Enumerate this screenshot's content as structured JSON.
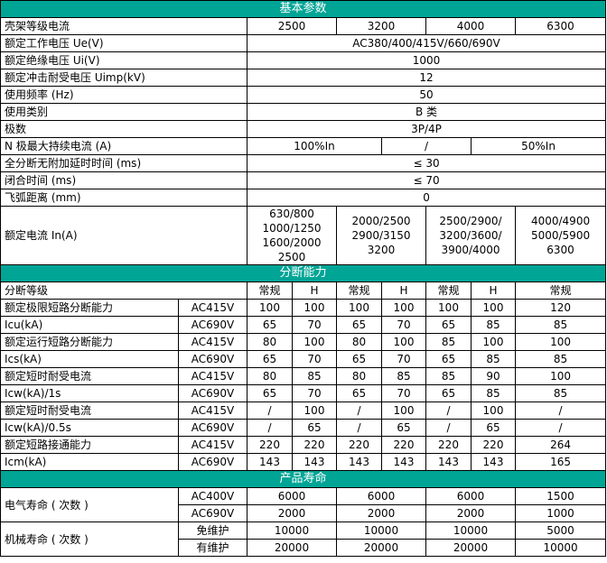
{
  "basic": {
    "title": "基本参数",
    "rows": [
      {
        "label": "壳架等级电流",
        "values": [
          "2500",
          "3200",
          "4000",
          "6300"
        ]
      },
      {
        "label": "额定工作电压 Ue(V)",
        "values": [
          "AC380/400/415V/660/690V"
        ]
      },
      {
        "label": "额定绝缘电压 Ui(V)",
        "values": [
          "1000"
        ]
      },
      {
        "label": "额定冲击耐受电压 Uimp(kV)",
        "values": [
          "12"
        ]
      },
      {
        "label": "使用频率 (Hz)",
        "values": [
          "50"
        ]
      },
      {
        "label": "使用类别",
        "values": [
          "B 类"
        ]
      },
      {
        "label": "极数",
        "values": [
          "3P/4P"
        ]
      },
      {
        "label": "N 极最大持续电流 (A)",
        "values": [
          "100%In",
          "/",
          "50%In"
        ]
      },
      {
        "label": "全分断无附加延时时间 (ms)",
        "values": [
          "≤ 30"
        ]
      },
      {
        "label": "闭合时间 (ms)",
        "values": [
          "≤ 70"
        ]
      },
      {
        "label": "飞弧距离 (mm)",
        "values": [
          "0"
        ]
      },
      {
        "label": "额定电流 In(A)",
        "values": [
          "630/800\n1000/1250\n1600/2000\n2500",
          "2000/2500\n2900/3150\n3200",
          "2500/2900/\n3200/3600/\n3900/4000",
          "4000/4900\n5000/5900\n6300"
        ]
      }
    ]
  },
  "breaking": {
    "title": "分断能力",
    "grade_label": "分断等级",
    "grades": [
      "常规",
      "H",
      "常规",
      "H",
      "常规",
      "H",
      "常规"
    ],
    "groups": [
      {
        "label": "额定极限短路分断能力",
        "sublabel": "Icu(kA)",
        "rows": [
          {
            "voltage": "AC415V",
            "values": [
              "100",
              "100",
              "100",
              "100",
              "100",
              "100",
              "120"
            ]
          },
          {
            "voltage": "AC690V",
            "values": [
              "65",
              "70",
              "65",
              "70",
              "65",
              "85",
              "85"
            ]
          }
        ]
      },
      {
        "label": "额定运行短路分断能力",
        "sublabel": "Ics(kA)",
        "rows": [
          {
            "voltage": "AC415V",
            "values": [
              "80",
              "100",
              "80",
              "100",
              "85",
              "100",
              "100"
            ]
          },
          {
            "voltage": "AC690V",
            "values": [
              "65",
              "70",
              "65",
              "70",
              "65",
              "85",
              "85"
            ]
          }
        ]
      },
      {
        "label": "额定短时耐受电流",
        "sublabel": "Icw(kA)/1s",
        "rows": [
          {
            "voltage": "AC415V",
            "values": [
              "80",
              "85",
              "80",
              "85",
              "85",
              "90",
              "100"
            ]
          },
          {
            "voltage": "AC690V",
            "values": [
              "65",
              "70",
              "65",
              "70",
              "65",
              "85",
              "85"
            ]
          }
        ]
      },
      {
        "label": "额定短时耐受电流",
        "sublabel": "Icw(kA)/0.5s",
        "rows": [
          {
            "voltage": "AC415V",
            "values": [
              "/",
              "100",
              "/",
              "100",
              "/",
              "100",
              "/"
            ]
          },
          {
            "voltage": "AC690V",
            "values": [
              "/",
              "65",
              "/",
              "65",
              "/",
              "65",
              "/"
            ]
          }
        ]
      },
      {
        "label": "额定短路接通能力",
        "sublabel": "Icm(kA)",
        "rows": [
          {
            "voltage": "AC415V",
            "values": [
              "220",
              "220",
              "220",
              "220",
              "220",
              "220",
              "264"
            ]
          },
          {
            "voltage": "AC690V",
            "values": [
              "143",
              "143",
              "143",
              "143",
              "143",
              "143",
              "165"
            ]
          }
        ]
      }
    ]
  },
  "life": {
    "title": "产品寿命",
    "groups": [
      {
        "label": "电气寿命 ( 次数 )",
        "rows": [
          {
            "sub": "AC400V",
            "values": [
              "6000",
              "6000",
              "6000",
              "1500"
            ]
          },
          {
            "sub": "AC690V",
            "values": [
              "2000",
              "2000",
              "2000",
              "1000"
            ]
          }
        ]
      },
      {
        "label": "机械寿命 ( 次数 )",
        "rows": [
          {
            "sub": "免维护",
            "values": [
              "10000",
              "10000",
              "10000",
              "5000"
            ]
          },
          {
            "sub": "有维护",
            "values": [
              "20000",
              "20000",
              "20000",
              "10000"
            ]
          }
        ]
      }
    ]
  },
  "colors": {
    "section_header": "#00a596",
    "section_text": "#ffffff",
    "border": "#000000"
  }
}
